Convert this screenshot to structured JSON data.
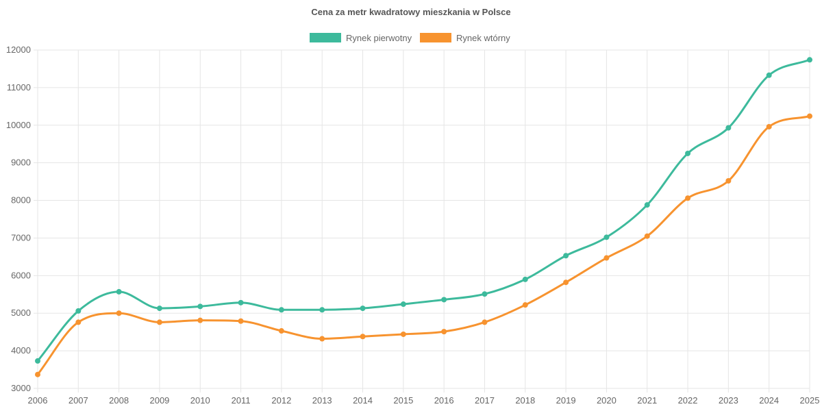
{
  "chart_data": {
    "type": "line",
    "title": "Cena za metr kwadratowy mieszkania w Polsce",
    "xlabel": "",
    "ylabel": "",
    "categories": [
      "2006",
      "2007",
      "2008",
      "2009",
      "2010",
      "2011",
      "2012",
      "2013",
      "2014",
      "2015",
      "2016",
      "2017",
      "2018",
      "2019",
      "2020",
      "2021",
      "2022",
      "2023",
      "2024",
      "2025"
    ],
    "series": [
      {
        "name": "Rynek pierwotny",
        "color": "#3dba9c",
        "values": [
          3730,
          5060,
          5570,
          5130,
          5180,
          5280,
          5090,
          5090,
          5130,
          5240,
          5360,
          5510,
          5900,
          6530,
          7020,
          7880,
          9250,
          9930,
          11330,
          11740
        ]
      },
      {
        "name": "Rynek wtórny",
        "color": "#f7932f",
        "values": [
          3370,
          4760,
          5000,
          4760,
          4810,
          4790,
          4530,
          4320,
          4380,
          4440,
          4510,
          4760,
          5220,
          5820,
          6470,
          7050,
          8060,
          8520,
          9960,
          10240
        ]
      }
    ],
    "y_ticks": [
      "3000",
      "4000",
      "5000",
      "6000",
      "7000",
      "8000",
      "9000",
      "10000",
      "11000",
      "12000"
    ],
    "ylim": [
      3000,
      12000
    ],
    "grid": true,
    "legend_position": "top"
  }
}
